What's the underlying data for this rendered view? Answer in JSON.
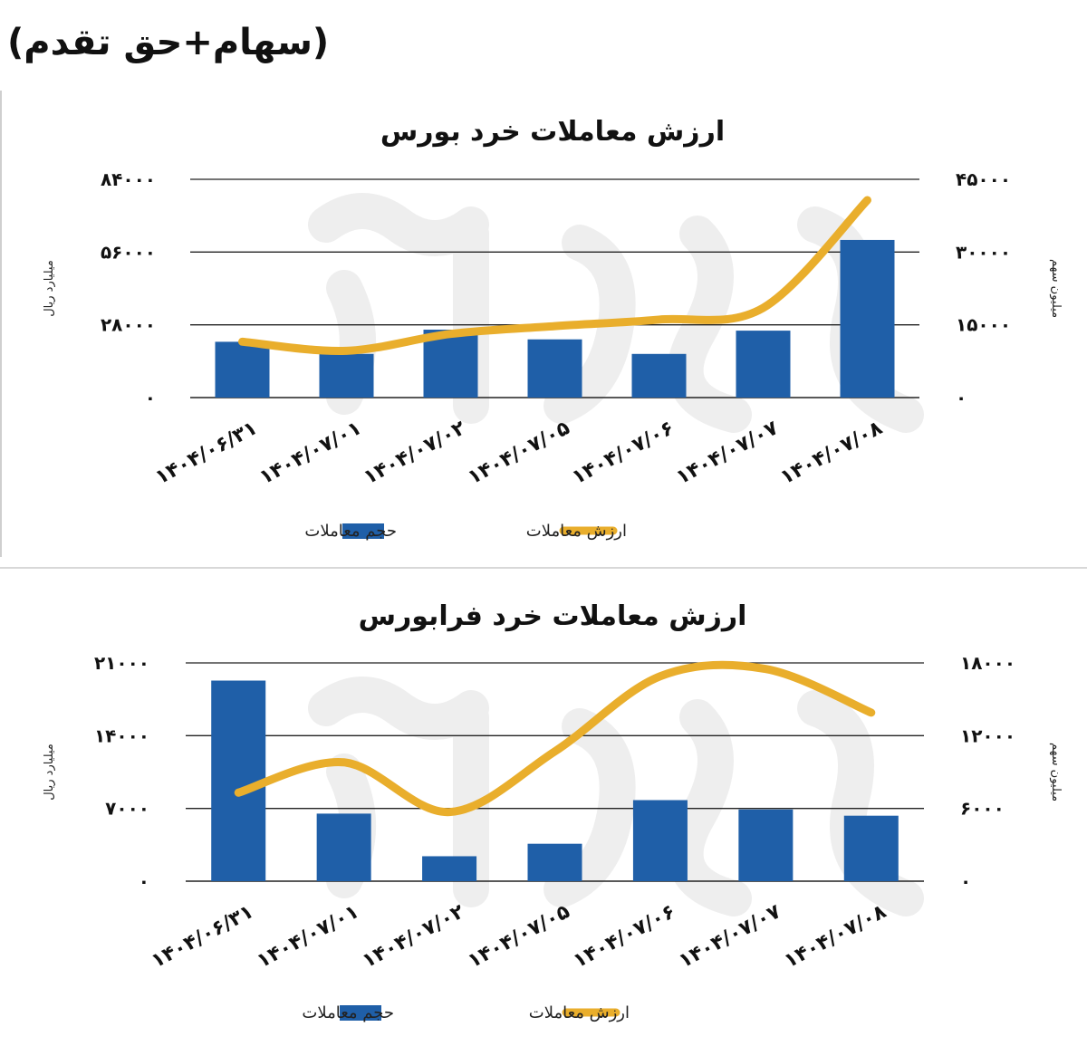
{
  "header_note": "(سهام+حق تقدم)",
  "chart_data": [
    {
      "type": "bar",
      "title": "ارزش معاملات خرد بورس",
      "categories": [
        "۱۴۰۴/۰۶/۳۱",
        "۱۴۰۴/۰۷/۰۱",
        "۱۴۰۴/۰۷/۰۲",
        "۱۴۰۴/۰۷/۰۵",
        "۱۴۰۴/۰۷/۰۶",
        "۱۴۰۴/۰۷/۰۷",
        "۱۴۰۴/۰۷/۰۸"
      ],
      "ylabel": "میلیارد ریال",
      "y2label": "میلیون سهم",
      "ylim": [
        0,
        84000
      ],
      "y2lim": [
        0,
        45000
      ],
      "yticks": [
        "۰",
        "۲۸۰۰۰",
        "۵۶۰۰۰",
        "۸۴۰۰۰"
      ],
      "y2ticks": [
        "۰",
        "۱۵۰۰۰",
        "۳۰۰۰۰",
        "۴۵۰۰۰"
      ],
      "grid": true,
      "legend": "bottom",
      "series": [
        {
          "name": "حجم معاملات",
          "type": "bar",
          "axis": "right",
          "color": "#1F5FA8",
          "values": [
            11500,
            9000,
            14000,
            12000,
            9000,
            13800,
            32500
          ]
        },
        {
          "name": "ارزش معاملات",
          "type": "line",
          "axis": "left",
          "color": "#E9AE2C",
          "values": [
            21500,
            18000,
            24500,
            27500,
            30000,
            34500,
            76000
          ]
        }
      ]
    },
    {
      "type": "bar",
      "title": "ارزش معاملات خرد فرابورس",
      "categories": [
        "۱۴۰۴/۰۶/۳۱",
        "۱۴۰۴/۰۷/۰۱",
        "۱۴۰۴/۰۷/۰۲",
        "۱۴۰۴/۰۷/۰۵",
        "۱۴۰۴/۰۷/۰۶",
        "۱۴۰۴/۰۷/۰۷",
        "۱۴۰۴/۰۷/۰۸"
      ],
      "ylabel": "میلیارد ریال",
      "y2label": "میلیون سهم",
      "ylim": [
        0,
        21000
      ],
      "y2lim": [
        0,
        18000
      ],
      "yticks": [
        "۰",
        "۷۰۰۰",
        "۱۴۰۰۰",
        "۲۱۰۰۰"
      ],
      "y2ticks": [
        "۰",
        "۶۰۰۰",
        "۱۲۰۰۰",
        "۱۸۰۰۰"
      ],
      "grid": true,
      "legend": "bottom",
      "series": [
        {
          "name": "حجم معاملات",
          "type": "bar",
          "axis": "left",
          "color": "#1F5FA8",
          "values": [
            19300,
            6500,
            2400,
            3600,
            7800,
            6900,
            6300
          ]
        },
        {
          "name": "ارزش معاملات",
          "type": "line",
          "axis": "right",
          "color": "#E9AE2C",
          "values": [
            7300,
            9800,
            5700,
            10700,
            16900,
            17500,
            13900
          ]
        }
      ]
    }
  ]
}
